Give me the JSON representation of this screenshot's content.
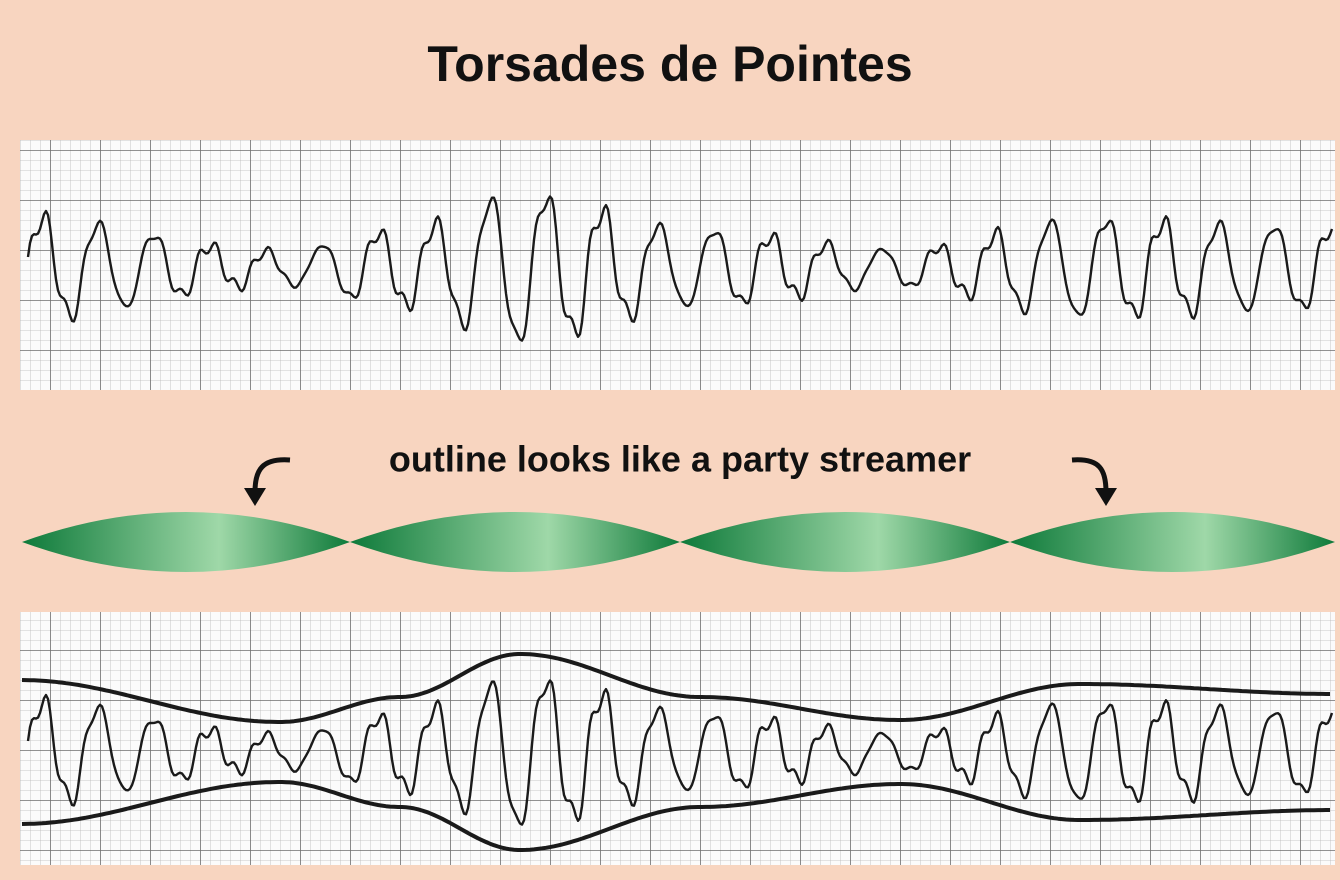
{
  "title": "Torsades de Pointes",
  "caption": "outline looks like a party streamer"
}
